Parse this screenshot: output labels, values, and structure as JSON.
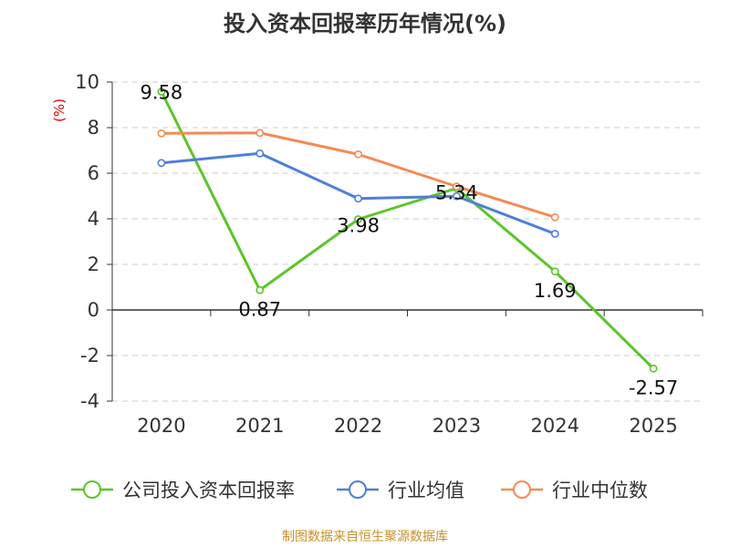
{
  "chart_data": {
    "type": "line",
    "title": "投入资本回报率历年情况(%)",
    "ylabel": "(%)",
    "categories": [
      "2020",
      "2021",
      "2022",
      "2023",
      "2024",
      "2025"
    ],
    "ylim": [
      -4,
      10
    ],
    "yticks": [
      -4,
      -2,
      0,
      2,
      4,
      6,
      8,
      10
    ],
    "grid": true,
    "legend_position": "bottom",
    "series": [
      {
        "name": "公司投入资本回报率",
        "color": "#5cc52a",
        "values": [
          9.58,
          0.87,
          3.98,
          5.34,
          1.69,
          -2.57
        ],
        "labels": [
          "9.58",
          "0.87",
          "3.98",
          "5.34",
          "1.69",
          "-2.57"
        ]
      },
      {
        "name": "行业均值",
        "color": "#4f7fd8",
        "values": [
          6.45,
          6.87,
          4.89,
          4.99,
          3.34,
          null
        ]
      },
      {
        "name": "行业中位数",
        "color": "#f58a55",
        "values": [
          7.75,
          7.77,
          6.83,
          5.42,
          4.07,
          null
        ]
      }
    ]
  },
  "footer": {
    "source": "制图数据来自恒生聚源数据库"
  }
}
